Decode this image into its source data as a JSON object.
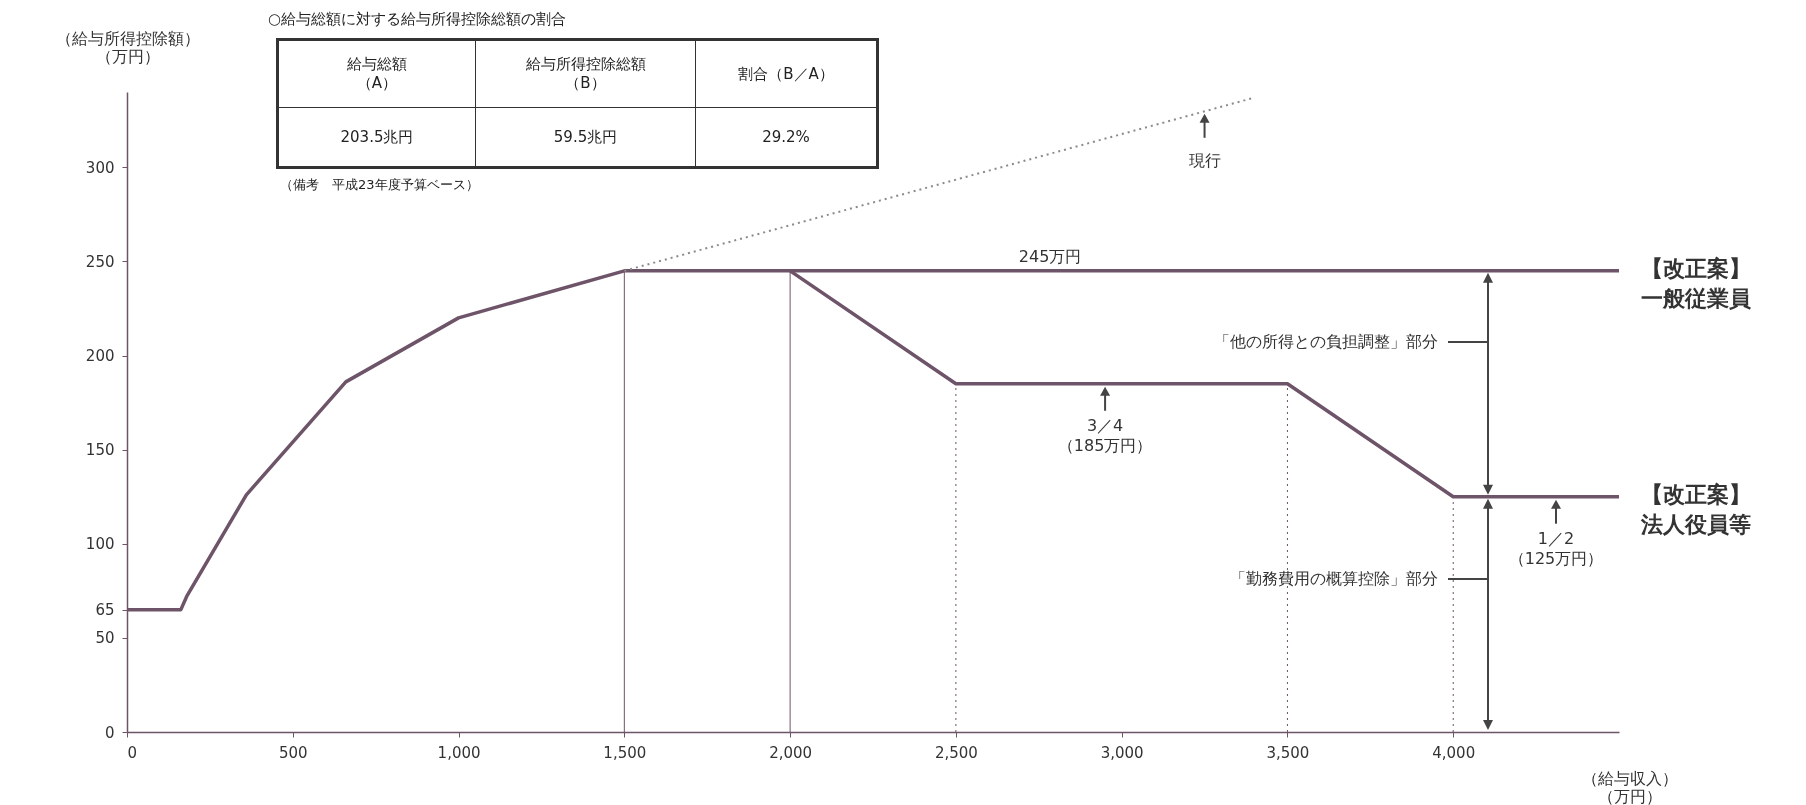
{
  "chart_data": {
    "type": "line",
    "xlabel": "（給与収入）（万円）",
    "ylabel": "（給与所得控除額）（万円）",
    "xlim": [
      0,
      4500
    ],
    "ylim": [
      0,
      340
    ],
    "xticks": [
      0,
      500,
      {
        "value": 1000,
        "label": "1,000"
      },
      {
        "value": 1500,
        "label": "1,500"
      },
      {
        "value": 2000,
        "label": "2,000"
      },
      {
        "value": 2500,
        "label": "2,500"
      },
      {
        "value": 3000,
        "label": "3,000"
      },
      {
        "value": 3500,
        "label": "3,500"
      },
      {
        "value": 4000,
        "label": "4,000"
      }
    ],
    "yticks": [
      0,
      50,
      65,
      100,
      150,
      200,
      250,
      300
    ],
    "series": [
      {
        "name": "【改正案】一般従業員",
        "color": "#6e5468",
        "x": [
          0,
          162.5,
          180,
          360,
          660,
          1000,
          1500,
          4500
        ],
        "values": [
          65,
          65,
          72,
          126,
          186,
          220,
          245,
          245
        ],
        "line_style": "solid"
      },
      {
        "name": "【改正案】法人役員等",
        "color": "#6e5468",
        "x": [
          2000,
          2500,
          3500,
          4000,
          4500
        ],
        "values": [
          245,
          185,
          185,
          125,
          125
        ],
        "line_style": "solid"
      },
      {
        "color": "#8a8a8a",
        "x": [
          1500,
          3400
        ],
        "values": [
          245,
          337
        ],
        "line_style": "dotted"
      }
    ],
    "ref_lines": [
      {
        "axis": "x",
        "value": 1500,
        "line_style": "solid"
      },
      {
        "axis": "x",
        "value": 2000,
        "line_style": "solid"
      },
      {
        "axis": "x",
        "value": 2500,
        "line_style": "dotted"
      },
      {
        "axis": "x",
        "value": 3500,
        "line_style": "dotted"
      },
      {
        "axis": "x",
        "value": 4000,
        "line_style": "dotted"
      }
    ],
    "annotations": [
      "○給与総額に対する給与所得控除総額の割合",
      "給与総額（A）",
      "給与所得控除総額（B）",
      "割合（B／A）",
      "203.5兆円",
      "59.5兆円",
      "29.2%",
      "（備考　平成23年度予算ベース）",
      {
        "text": "現行",
        "x": 3250,
        "y": 330
      },
      {
        "text": "245万円",
        "x": 2784,
        "y": 245
      },
      {
        "text": "3／4（185万円）",
        "x": 2950,
        "y": 185
      },
      {
        "text": "1／2（125万円）",
        "x": 4310,
        "y": 125
      },
      "「他の所得との負担調整」部分",
      "「勤務費用の概算控除」部分"
    ]
  }
}
